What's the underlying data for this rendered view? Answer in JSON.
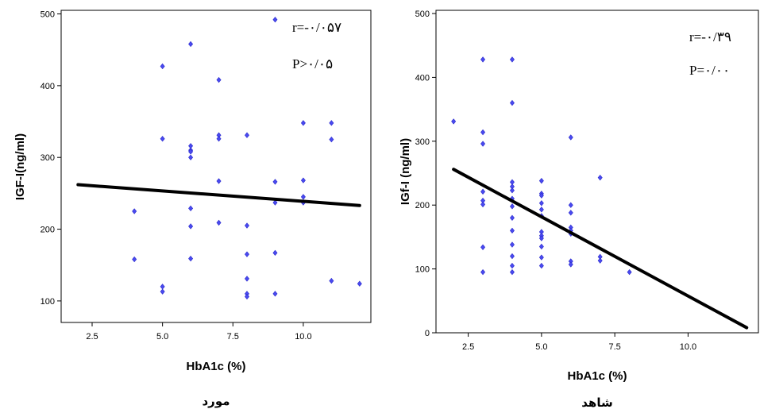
{
  "chart_data": [
    {
      "type": "scatter",
      "caption": "مورد",
      "xlabel": "HbA1c (%)",
      "ylabel": "IGF-I(ng/ml)",
      "xlim": [
        1.4,
        12.4
      ],
      "ylim": [
        70,
        505
      ],
      "xticks": [
        "2.5",
        "5.0",
        "7.5",
        "10.0"
      ],
      "yticks": [
        "100",
        "200",
        "300",
        "400",
        "500"
      ],
      "annotations": [
        "r=-۰/۰۵۷",
        "P>۰/۰۵"
      ],
      "fit_line": {
        "x": [
          2,
          12
        ],
        "y": [
          262,
          233
        ]
      },
      "points": [
        [
          4,
          225
        ],
        [
          4,
          158
        ],
        [
          5,
          427
        ],
        [
          5,
          326
        ],
        [
          5,
          120
        ],
        [
          5,
          113
        ],
        [
          6,
          458
        ],
        [
          6,
          316
        ],
        [
          6,
          310
        ],
        [
          6,
          308
        ],
        [
          6,
          300
        ],
        [
          6,
          229
        ],
        [
          6,
          204
        ],
        [
          6,
          159
        ],
        [
          7,
          408
        ],
        [
          7,
          331
        ],
        [
          7,
          326
        ],
        [
          7,
          267
        ],
        [
          7,
          209
        ],
        [
          8,
          331
        ],
        [
          8,
          205
        ],
        [
          8,
          165
        ],
        [
          8,
          131
        ],
        [
          8,
          110
        ],
        [
          8,
          106
        ],
        [
          9,
          492
        ],
        [
          9,
          266
        ],
        [
          9,
          237
        ],
        [
          9,
          167
        ],
        [
          9,
          110
        ],
        [
          10,
          348
        ],
        [
          10,
          268
        ],
        [
          10,
          245
        ],
        [
          10,
          237
        ],
        [
          11,
          348
        ],
        [
          11,
          325
        ],
        [
          11,
          128
        ],
        [
          12,
          124
        ]
      ],
      "point_color": "#4a4af0"
    },
    {
      "type": "scatter",
      "caption": "شاهد",
      "xlabel": "HbA1c (%)",
      "ylabel": "IGf-I (ng/ml)",
      "xlim": [
        1.4,
        12.4
      ],
      "ylim": [
        0,
        505
      ],
      "xticks": [
        "2.5",
        "5.0",
        "7.5",
        "10.0"
      ],
      "yticks": [
        "0",
        "100",
        "200",
        "300",
        "400",
        "500"
      ],
      "annotations": [
        "r=-۰/۳۹",
        "P=۰/۰۰"
      ],
      "fit_line": {
        "x": [
          2,
          12
        ],
        "y": [
          256,
          8
        ]
      },
      "points": [
        [
          2,
          331
        ],
        [
          3,
          428
        ],
        [
          3,
          314
        ],
        [
          3,
          296
        ],
        [
          3,
          221
        ],
        [
          3,
          207
        ],
        [
          3,
          201
        ],
        [
          3,
          134
        ],
        [
          3,
          95
        ],
        [
          4,
          428
        ],
        [
          4,
          360
        ],
        [
          4,
          236
        ],
        [
          4,
          229
        ],
        [
          4,
          223
        ],
        [
          4,
          210
        ],
        [
          4,
          198
        ],
        [
          4,
          180
        ],
        [
          4,
          160
        ],
        [
          4,
          138
        ],
        [
          4,
          120
        ],
        [
          4,
          105
        ],
        [
          4,
          95
        ],
        [
          5,
          238
        ],
        [
          5,
          218
        ],
        [
          5,
          215
        ],
        [
          5,
          203
        ],
        [
          5,
          193
        ],
        [
          5,
          183
        ],
        [
          5,
          158
        ],
        [
          5,
          152
        ],
        [
          5,
          148
        ],
        [
          5,
          135
        ],
        [
          5,
          118
        ],
        [
          5,
          105
        ],
        [
          6,
          306
        ],
        [
          6,
          200
        ],
        [
          6,
          188
        ],
        [
          6,
          165
        ],
        [
          6,
          160
        ],
        [
          6,
          155
        ],
        [
          6,
          112
        ],
        [
          6,
          107
        ],
        [
          7,
          243
        ],
        [
          7,
          119
        ],
        [
          7,
          113
        ],
        [
          8,
          95
        ]
      ],
      "point_color": "#4a4af0"
    }
  ]
}
